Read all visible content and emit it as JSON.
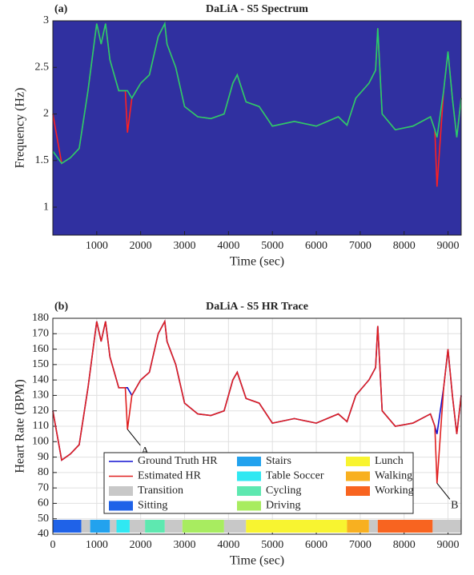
{
  "chart_data": [
    {
      "type": "line",
      "panel": "(a)",
      "title": "DaLiA - S5 Spectrum",
      "xlabel": "Time (sec)",
      "ylabel": "Frequency (Hz)",
      "background": "#3030a0",
      "xlim": [
        0,
        9300
      ],
      "xticks": [
        1000,
        2000,
        3000,
        4000,
        5000,
        6000,
        7000,
        8000,
        9000
      ],
      "ylim": [
        0.7,
        3
      ],
      "yticks": [
        1,
        1.5,
        2,
        2.5,
        3
      ],
      "x": [
        0,
        200,
        400,
        600,
        800,
        1000,
        1100,
        1200,
        1300,
        1500,
        1650,
        1700,
        1800,
        2000,
        2200,
        2400,
        2550,
        2600,
        2800,
        3000,
        3300,
        3600,
        3900,
        4100,
        4200,
        4400,
        4700,
        5000,
        5500,
        6000,
        6500,
        6700,
        6900,
        7200,
        7350,
        7400,
        7500,
        7800,
        8200,
        8600,
        8700,
        8750,
        8900,
        9000,
        9100,
        9200,
        9300
      ],
      "series": [
        {
          "color": "#ff2020",
          "values": [
            2.0,
            1.47,
            1.53,
            1.63,
            2.25,
            2.97,
            2.75,
            2.97,
            2.58,
            2.25,
            2.25,
            1.8,
            2.17,
            2.33,
            2.42,
            2.83,
            2.97,
            2.75,
            2.5,
            2.08,
            1.97,
            1.95,
            2.0,
            2.33,
            2.42,
            2.13,
            2.08,
            1.87,
            1.92,
            1.87,
            1.97,
            1.88,
            2.17,
            2.33,
            2.47,
            2.92,
            2.0,
            1.83,
            1.87,
            1.97,
            1.83,
            1.22,
            2.25,
            2.67,
            2.17,
            1.75,
            2.17
          ]
        },
        {
          "color": "#20d070",
          "values": [
            1.6,
            1.47,
            1.53,
            1.63,
            2.25,
            2.97,
            2.75,
            2.97,
            2.58,
            2.25,
            2.25,
            2.25,
            2.17,
            2.33,
            2.42,
            2.83,
            2.97,
            2.75,
            2.5,
            2.08,
            1.97,
            1.95,
            2.0,
            2.33,
            2.42,
            2.13,
            2.08,
            1.87,
            1.92,
            1.87,
            1.97,
            1.88,
            2.17,
            2.33,
            2.47,
            2.92,
            2.0,
            1.83,
            1.87,
            1.97,
            1.83,
            1.75,
            2.25,
            2.67,
            2.17,
            1.75,
            2.17
          ]
        }
      ]
    },
    {
      "type": "line",
      "panel": "(b)",
      "title": "DaLiA - S5 HR Trace",
      "xlabel": "Time (sec)",
      "ylabel": "Heart Rate (BPM)",
      "grid": true,
      "xlim": [
        0,
        9300
      ],
      "xticks": [
        0,
        1000,
        2000,
        3000,
        4000,
        5000,
        6000,
        7000,
        8000,
        9000
      ],
      "ylim": [
        40,
        180
      ],
      "yticks": [
        40,
        50,
        60,
        70,
        80,
        90,
        100,
        110,
        120,
        130,
        140,
        150,
        160,
        170,
        180
      ],
      "x": [
        0,
        200,
        400,
        600,
        800,
        1000,
        1100,
        1200,
        1300,
        1500,
        1650,
        1700,
        1800,
        2000,
        2200,
        2400,
        2550,
        2600,
        2800,
        3000,
        3300,
        3600,
        3900,
        4100,
        4200,
        4400,
        4700,
        5000,
        5500,
        6000,
        6500,
        6700,
        6900,
        7200,
        7350,
        7400,
        7500,
        7800,
        8200,
        8600,
        8700,
        8750,
        8900,
        9000,
        9100,
        9200,
        9300
      ],
      "series": [
        {
          "name": "Ground Truth HR",
          "color": "#1010d0",
          "values": [
            120,
            88,
            92,
            98,
            135,
            178,
            165,
            178,
            155,
            135,
            135,
            135,
            130,
            140,
            145,
            170,
            178,
            165,
            150,
            125,
            118,
            117,
            120,
            140,
            145,
            128,
            125,
            112,
            115,
            112,
            118,
            113,
            130,
            140,
            148,
            175,
            120,
            110,
            112,
            118,
            110,
            105,
            135,
            160,
            130,
            105,
            130
          ]
        },
        {
          "name": "Estimated HR",
          "color": "#e02020",
          "values": [
            120,
            88,
            92,
            98,
            135,
            178,
            165,
            178,
            155,
            135,
            135,
            108,
            130,
            140,
            145,
            170,
            178,
            165,
            150,
            125,
            118,
            117,
            120,
            140,
            145,
            128,
            125,
            112,
            115,
            112,
            118,
            113,
            130,
            140,
            148,
            175,
            120,
            110,
            112,
            118,
            110,
            73,
            135,
            160,
            130,
            105,
            130
          ]
        }
      ],
      "activities": [
        {
          "name": "Transition",
          "color": "#c8c8c8"
        },
        {
          "name": "Sitting",
          "color": "#1f62e8"
        },
        {
          "name": "Stairs",
          "color": "#22a2ee"
        },
        {
          "name": "Table Soccer",
          "color": "#30e8f2"
        },
        {
          "name": "Cycling",
          "color": "#5ee8b0"
        },
        {
          "name": "Driving",
          "color": "#a8ec60"
        },
        {
          "name": "Lunch",
          "color": "#f8f430"
        },
        {
          "name": "Walking",
          "color": "#f8b020"
        },
        {
          "name": "Working",
          "color": "#f86420"
        }
      ],
      "segments": [
        {
          "x": [
            0,
            650
          ],
          "color": "#1f62e8"
        },
        {
          "x": [
            650,
            850
          ],
          "color": "#c8c8c8"
        },
        {
          "x": [
            850,
            1300
          ],
          "color": "#22a2ee"
        },
        {
          "x": [
            1300,
            1450
          ],
          "color": "#c8c8c8"
        },
        {
          "x": [
            1450,
            1750
          ],
          "color": "#30e8f2"
        },
        {
          "x": [
            1750,
            2100
          ],
          "color": "#c8c8c8"
        },
        {
          "x": [
            2100,
            2550
          ],
          "color": "#5ee8b0"
        },
        {
          "x": [
            2550,
            2950
          ],
          "color": "#c8c8c8"
        },
        {
          "x": [
            2950,
            3900
          ],
          "color": "#a8ec60"
        },
        {
          "x": [
            3900,
            4400
          ],
          "color": "#c8c8c8"
        },
        {
          "x": [
            4400,
            6700
          ],
          "color": "#f8f430"
        },
        {
          "x": [
            6700,
            7200
          ],
          "color": "#f8b020"
        },
        {
          "x": [
            7200,
            7400
          ],
          "color": "#c8c8c8"
        },
        {
          "x": [
            7400,
            8650
          ],
          "color": "#f86420"
        },
        {
          "x": [
            8650,
            9300
          ],
          "color": "#c8c8c8"
        }
      ],
      "annotations": [
        {
          "text": "A",
          "x": 1700,
          "y": 108
        },
        {
          "text": "B",
          "x": 8750,
          "y": 73
        }
      ]
    }
  ]
}
